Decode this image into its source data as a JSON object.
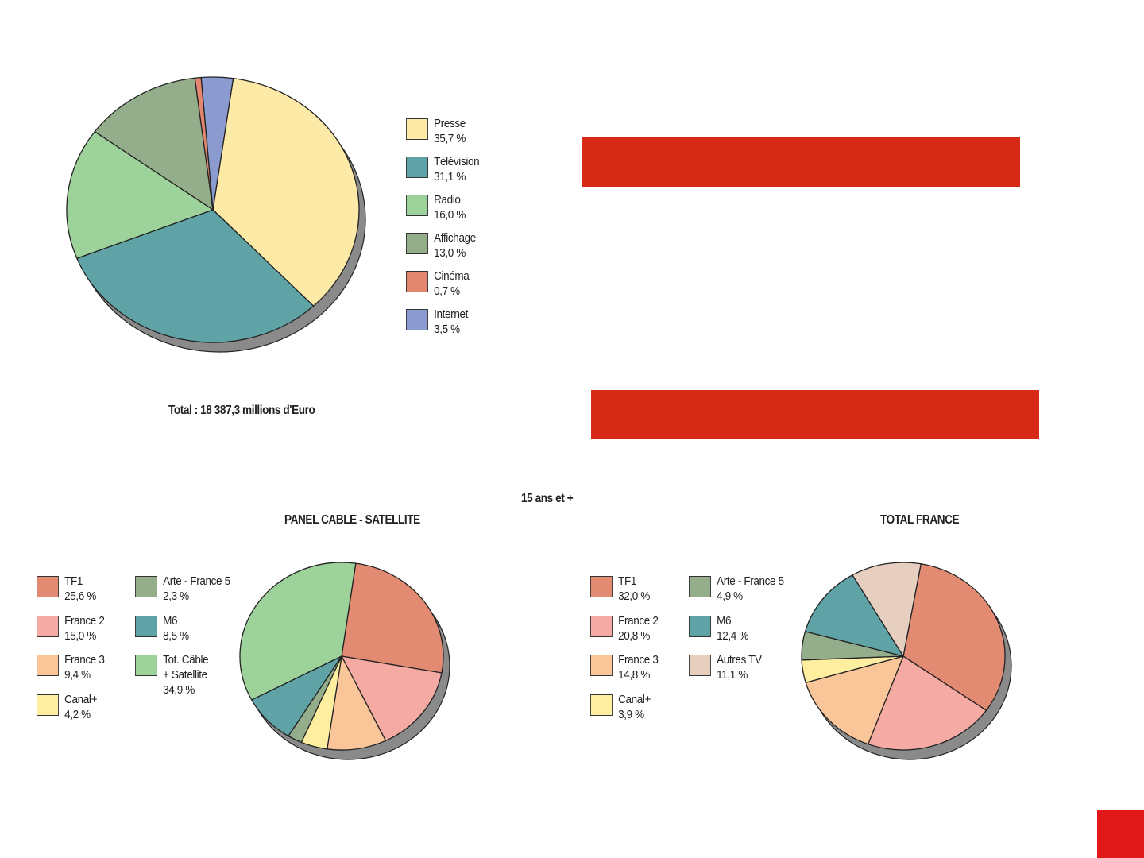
{
  "chart_data": [
    {
      "type": "pie",
      "id": "media",
      "title": "",
      "caption": "Total : 18 387,3 millions d'Euro",
      "categories": [
        "Presse",
        "Télévision",
        "Radio",
        "Affichage",
        "Cinéma",
        "Internet"
      ],
      "values": [
        35.7,
        31.1,
        16.0,
        13.0,
        0.7,
        3.5
      ],
      "value_labels": [
        "35,7 %",
        "31,1 %",
        "16,0 %",
        "13,0 %",
        "0,7 %",
        "3,5 %"
      ],
      "colors": [
        "#fdeaa6",
        "#5fa3a7",
        "#9dd39b",
        "#94ae8c",
        "#e38770",
        "#8b9bcf"
      ],
      "legend": "right"
    },
    {
      "type": "pie",
      "id": "cable",
      "title": "PANEL CABLE - SATELLITE",
      "categories": [
        "TF1",
        "France 2",
        "France 3",
        "Canal+",
        "Arte - France 5",
        "M6",
        "Tot. Câble + Satellite"
      ],
      "values": [
        25.6,
        15.0,
        9.4,
        4.2,
        2.3,
        8.5,
        34.9
      ],
      "value_labels": [
        "25,6 %",
        "15,0 %",
        "9,4 %",
        "4,2 %",
        "2,3 %",
        "8,5 %",
        "34,9 %"
      ],
      "colors": [
        "#e38b72",
        "#f5aaa4",
        "#fbc59a",
        "#fdeea0",
        "#94ae8c",
        "#5fa3a7",
        "#9dd39b"
      ],
      "legend": "left"
    },
    {
      "type": "pie",
      "id": "france",
      "title": "TOTAL FRANCE",
      "categories": [
        "TF1",
        "France 2",
        "France 3",
        "Canal+",
        "Arte - France 5",
        "M6",
        "Autres TV"
      ],
      "values": [
        32.0,
        20.8,
        14.8,
        3.9,
        4.9,
        12.4,
        11.1
      ],
      "value_labels": [
        "32,0 %",
        "20,8 %",
        "14,8 %",
        "3,9 %",
        "4,9 %",
        "12,4 %",
        "11,1 %"
      ],
      "colors": [
        "#e38b72",
        "#f5aaa4",
        "#fbc59a",
        "#fdeea0",
        "#94ae8c",
        "#5fa3a7",
        "#e6cfbf"
      ],
      "legend": "left"
    }
  ],
  "subtitle": "15 ans et +",
  "colors": {
    "bar": "#d62a16",
    "corner": "#e01818"
  }
}
